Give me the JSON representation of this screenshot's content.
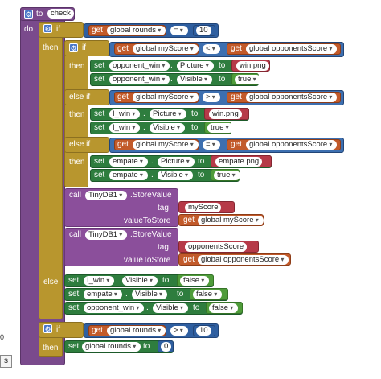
{
  "procedure": {
    "to": "to",
    "name": "check",
    "do": "do"
  },
  "labels": {
    "if": "if",
    "then": "then",
    "else_if": "else if",
    "else": "else",
    "get": "get",
    "set": "set",
    "to": "to",
    "dot": "."
  },
  "if1": {
    "var": "global rounds",
    "op": "=",
    "value": "10"
  },
  "if2": {
    "left": "global myScore",
    "op": "<",
    "right": "global opponentsScore"
  },
  "set_a": [
    {
      "comp": "opponent_win",
      "prop": "Picture",
      "value": "win.png"
    },
    {
      "comp": "opponent_win",
      "prop": "Visible",
      "value": "true"
    }
  ],
  "elseif1": {
    "left": "global myScore",
    "op": ">",
    "right": "global opponentsScore"
  },
  "set_b": [
    {
      "comp": "I_win",
      "prop": "Picture",
      "value": "win.png"
    },
    {
      "comp": "I_win",
      "prop": "Visible",
      "value": "true"
    }
  ],
  "elseif2": {
    "left": "global myScore",
    "op": "=",
    "right": "global opponentsScore"
  },
  "set_c": [
    {
      "comp": "empate",
      "prop": "Picture",
      "value": "empate.png"
    },
    {
      "comp": "empate",
      "prop": "Visible",
      "value": "true"
    }
  ],
  "store1": {
    "call": "call",
    "db": "TinyDB1",
    "method": ".StoreValue",
    "tag_label": "tag",
    "tag": "myScore",
    "vts_label": "valueToStore",
    "value": "global myScore"
  },
  "store2": {
    "call": "call",
    "db": "TinyDB1",
    "method": ".StoreValue",
    "tag_label": "tag",
    "tag": "opponentsScore",
    "vts_label": "valueToStore",
    "value": "global opponentsScore"
  },
  "set_else": [
    {
      "comp": "I_win",
      "prop": "Visible",
      "value": "false"
    },
    {
      "comp": "empate",
      "prop": "Visible",
      "value": "false"
    },
    {
      "comp": "opponent_win",
      "prop": "Visible",
      "value": "false"
    }
  ],
  "if3": {
    "var": "global rounds",
    "op": ">",
    "value": "10"
  },
  "reset": {
    "var": "global rounds",
    "value": "0"
  },
  "side": {
    "zero": "0",
    "btn": "s"
  },
  "colors": {
    "procedure": "#7a4a8c",
    "control": "#b8962e",
    "setter": "#2e7d3e",
    "getter": "#c25a2a",
    "math": "#2f5fa0",
    "text": "#b63a48",
    "logic": "#4f9c3a",
    "tinydb": "#8b4f9b"
  }
}
